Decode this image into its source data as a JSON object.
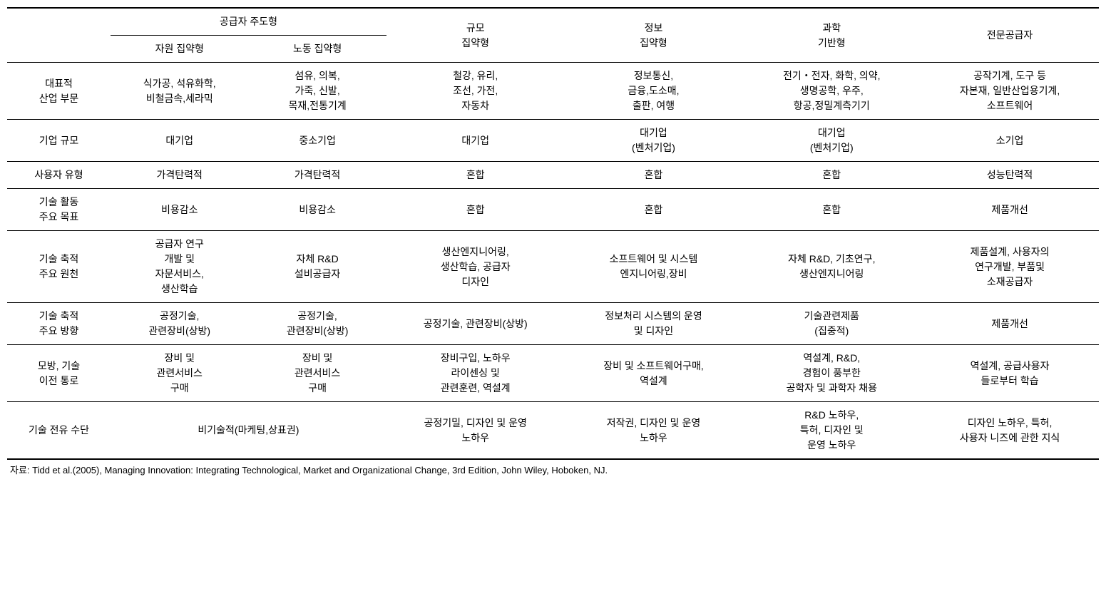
{
  "header": {
    "supplier_led": "공급자 주도형",
    "resource_intensive": "자원 집약형",
    "labor_intensive": "노동 집약형",
    "scale_intensive": "규모\n집약형",
    "info_intensive": "정보\n집약형",
    "science_based": "과학\n기반형",
    "specialist_supplier": "전문공급자"
  },
  "rows": {
    "r1": {
      "label": "대표적\n산업 부문",
      "c1": "식가공, 석유화학,\n비철금속,세라믹",
      "c2": "섬유, 의복,\n가죽, 신발,\n목재,전통기계",
      "c3": "철강, 유리,\n조선, 가전,\n자동차",
      "c4": "정보통신,\n금융,도소매,\n출판, 여행",
      "c5": "전기・전자, 화학, 의약,\n생명공학, 우주,\n항공,정밀계측기기",
      "c6": "공작기계, 도구 등\n자본재, 일반산업용기계,\n소프트웨어"
    },
    "r2": {
      "label": "기업 규모",
      "c1": "대기업",
      "c2": "중소기업",
      "c3": "대기업",
      "c4": "대기업\n(벤처기업)",
      "c5": "대기업\n(벤처기업)",
      "c6": "소기업"
    },
    "r3": {
      "label": "사용자 유형",
      "c1": "가격탄력적",
      "c2": "가격탄력적",
      "c3": "혼합",
      "c4": "혼합",
      "c5": "혼합",
      "c6": "성능탄력적"
    },
    "r4": {
      "label": "기술 활동\n주요 목표",
      "c1": "비용감소",
      "c2": "비용감소",
      "c3": "혼합",
      "c4": "혼합",
      "c5": "혼합",
      "c6": "제품개선"
    },
    "r5": {
      "label": "기술 축적\n주요 원천",
      "c1": "공급자 연구\n개발 및\n자문서비스,\n생산학습",
      "c2": "자체 R&D\n설비공급자",
      "c3": "생산엔지니어링,\n생산학습, 공급자\n디자인",
      "c4": "소프트웨어 및 시스템\n엔지니어링,장비",
      "c5": "자체 R&D, 기초연구,\n생산엔지니어링",
      "c6": "제품설계, 사용자의\n연구개발, 부품및\n소재공급자"
    },
    "r6": {
      "label": "기술 축적\n주요 방향",
      "c1": "공정기술,\n관련장비(상방)",
      "c2": "공정기술,\n관련장비(상방)",
      "c3": "공정기술, 관련장비(상방)",
      "c4": "정보처리 시스템의 운영\n및 디자인",
      "c5": "기술관련제품\n(집중적)",
      "c6": "제품개선"
    },
    "r7": {
      "label": "모방, 기술\n이전 통로",
      "c1": "장비 및\n관련서비스\n구매",
      "c2": "장비 및\n관련서비스\n구매",
      "c3": "장비구입, 노하우\n라이센싱 및\n관련훈련, 역설계",
      "c4": "장비 및 소프트웨어구매,\n역설계",
      "c5": "역설계,  R&D,\n경험이 풍부한\n공학자 및 과학자 채용",
      "c6": "역설계, 공급사용자\n들로부터 학습"
    },
    "r8": {
      "label": "기술 전유 수단",
      "c12": "비기술적(마케팅,상표권)",
      "c3": "공정기밀, 디자인 및 운영\n노하우",
      "c4": "저작권, 디자인 및 운영\n노하우",
      "c5": "R&D 노하우,\n특허, 디자인 및\n운영 노하우",
      "c6": "디자인 노하우, 특허,\n사용자 니즈에 관한 지식"
    }
  },
  "source": "자료: Tidd et al.(2005), Managing Innovation: Integrating Technological, Market and Organizational Change, 3rd Edition, John Wiley, Hoboken, NJ."
}
